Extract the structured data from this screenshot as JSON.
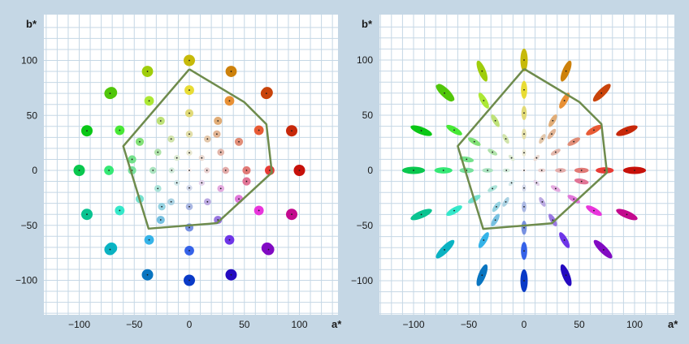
{
  "panels": [
    {
      "id": "left",
      "x_axis_label": "a*",
      "y_axis_label": "b*",
      "x_ticks": [
        -100,
        -50,
        0,
        50,
        100
      ],
      "y_ticks": [
        100,
        50,
        0,
        -50,
        -100
      ],
      "x_tick_labels": [
        "−100",
        "−50",
        "0",
        "50",
        "100"
      ],
      "y_tick_labels": [
        "100",
        "50",
        "0",
        "−50",
        "−100"
      ],
      "marker": "circle"
    },
    {
      "id": "right",
      "x_axis_label": "a*",
      "y_axis_label": "b*",
      "x_ticks": [
        -100,
        -50,
        0,
        50,
        100
      ],
      "y_ticks": [
        100,
        50,
        0,
        -50,
        -100
      ],
      "x_tick_labels": [
        "−100",
        "−50",
        "0",
        "50",
        "100"
      ],
      "y_tick_labels": [
        "100",
        "50",
        "0",
        "−50",
        "−100"
      ],
      "marker": "ellipse"
    }
  ],
  "gamut_polygon": [
    [
      0,
      92
    ],
    [
      50,
      62
    ],
    [
      70,
      42
    ],
    [
      75,
      -2
    ],
    [
      25,
      -48
    ],
    [
      -37,
      -53
    ],
    [
      -60,
      22
    ],
    [
      0,
      92
    ]
  ],
  "colors": {
    "background": "#c5d7e5",
    "plot": "#ffffff",
    "grid": "#c5d7e5",
    "polygon": "#6e8b4c"
  }
}
